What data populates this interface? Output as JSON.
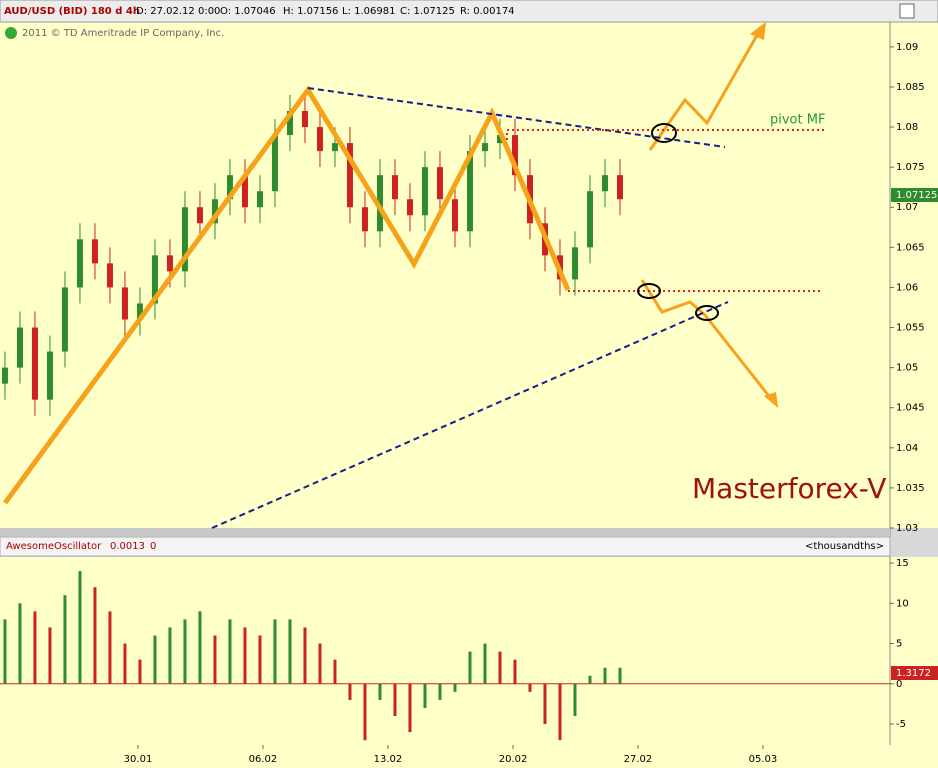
{
  "header": {
    "symbol": "AUD/USD (BID) 180 d 4h",
    "date": "D: 27.02.12 0:00",
    "open": "O: 1.07046",
    "high": "H: 1.07156",
    "low": "L: 1.06981",
    "close": "C: 1.07125",
    "range": "R: 0.00174",
    "copyright": "2011 © TD Ameritrade IP Company, Inc.",
    "price_tag": "1.07125",
    "pivot_label": "pivot MF",
    "watermark": "Masterforex-V"
  },
  "chart_data": [
    {
      "type": "candlestick",
      "up_color": "#2e8b2e",
      "down_color": "#cc2222",
      "open": [
        1.048,
        1.05,
        1.055,
        1.046,
        1.052,
        1.06,
        1.066,
        1.063,
        1.06,
        1.056,
        1.058,
        1.064,
        1.062,
        1.07,
        1.068,
        1.071,
        1.074,
        1.07,
        1.072,
        1.079,
        1.082,
        1.08,
        1.077,
        1.078,
        1.07,
        1.067,
        1.074,
        1.071,
        1.069,
        1.075,
        1.071,
        1.067,
        1.077,
        1.078,
        1.079,
        1.074,
        1.068,
        1.064,
        1.061,
        1.065,
        1.072,
        1.074
      ],
      "high": [
        1.052,
        1.057,
        1.057,
        1.054,
        1.062,
        1.068,
        1.068,
        1.065,
        1.062,
        1.06,
        1.066,
        1.066,
        1.072,
        1.072,
        1.073,
        1.076,
        1.076,
        1.074,
        1.081,
        1.084,
        1.084,
        1.082,
        1.08,
        1.08,
        1.072,
        1.076,
        1.076,
        1.073,
        1.077,
        1.077,
        1.073,
        1.079,
        1.08,
        1.081,
        1.081,
        1.076,
        1.07,
        1.066,
        1.067,
        1.074,
        1.076,
        1.076
      ],
      "low": [
        1.046,
        1.048,
        1.044,
        1.044,
        1.05,
        1.058,
        1.061,
        1.058,
        1.054,
        1.054,
        1.056,
        1.06,
        1.06,
        1.066,
        1.066,
        1.069,
        1.068,
        1.068,
        1.07,
        1.077,
        1.078,
        1.075,
        1.075,
        1.068,
        1.065,
        1.065,
        1.069,
        1.067,
        1.067,
        1.069,
        1.065,
        1.065,
        1.075,
        1.076,
        1.072,
        1.066,
        1.062,
        1.059,
        1.059,
        1.063,
        1.07,
        1.069
      ],
      "close": [
        1.05,
        1.055,
        1.046,
        1.052,
        1.06,
        1.066,
        1.063,
        1.06,
        1.056,
        1.058,
        1.064,
        1.062,
        1.07,
        1.068,
        1.071,
        1.074,
        1.07,
        1.072,
        1.079,
        1.082,
        1.08,
        1.077,
        1.078,
        1.07,
        1.067,
        1.074,
        1.071,
        1.069,
        1.075,
        1.071,
        1.067,
        1.077,
        1.078,
        1.079,
        1.074,
        1.068,
        1.064,
        1.061,
        1.065,
        1.072,
        1.074,
        1.071
      ],
      "ylim": [
        1.03,
        1.0931
      ],
      "yticks": [
        1.09,
        1.085,
        1.08,
        1.075,
        1.07,
        1.065,
        1.06,
        1.055,
        1.05,
        1.045,
        1.04,
        1.035,
        1.03
      ],
      "xlim": [
        -0.33,
        59
      ],
      "xticks": [
        {
          "value": 8.87,
          "label": "30.01"
        },
        {
          "value": 17.2,
          "label": "06.02"
        },
        {
          "value": 25.53,
          "label": "13.02"
        },
        {
          "value": 33.87,
          "label": "20.02"
        },
        {
          "value": 42.2,
          "label": "27.02"
        },
        {
          "value": 50.53,
          "label": "05.03"
        }
      ]
    },
    {
      "type": "oscillator",
      "title": "AwesomeOscillator",
      "value_label": "0.0013",
      "zero_label": "0",
      "unit_label": "<thousandths>",
      "last_label": "1.3172",
      "up_color": "#2e8b2e",
      "down_color": "#cc2222",
      "values": [
        8,
        10,
        9,
        7,
        11,
        14,
        12,
        9,
        5,
        3,
        6,
        7,
        8,
        9,
        6,
        8,
        7,
        6,
        8,
        8,
        7,
        5,
        3,
        -2,
        -7,
        -2,
        -4,
        -6,
        -3,
        -2,
        -1,
        4,
        5,
        4,
        3,
        -1,
        -5,
        -7,
        -4,
        1,
        2,
        2
      ],
      "ylim": [
        -7.6,
        15.75
      ],
      "yticks": [
        15,
        10,
        5,
        0,
        -5
      ]
    }
  ]
}
